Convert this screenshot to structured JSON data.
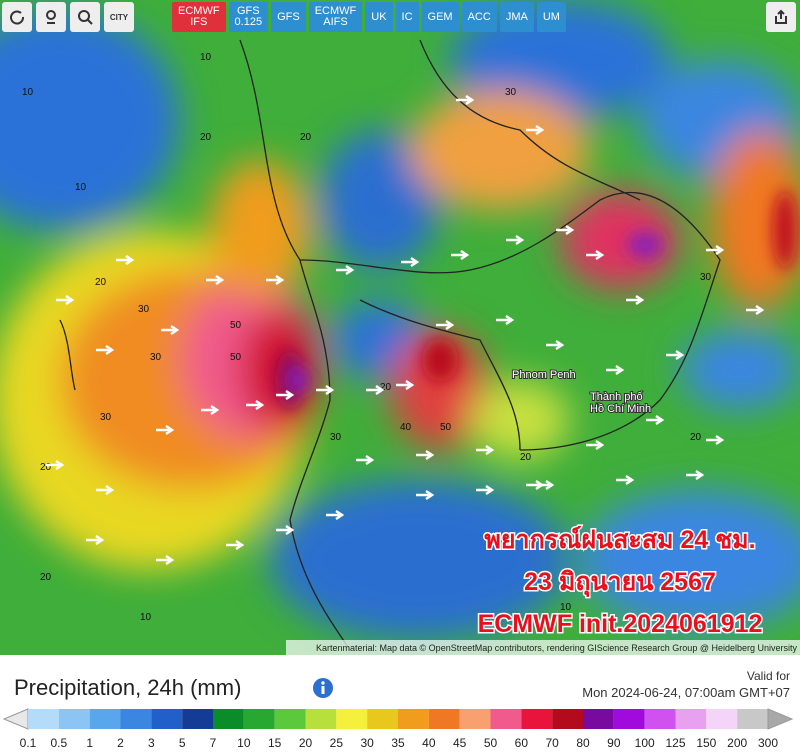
{
  "toolbar": {
    "tools": [
      "CITY"
    ],
    "models": [
      [
        "ECMWF",
        "IFS"
      ],
      [
        "GFS",
        "0.125"
      ],
      [
        "GFS"
      ],
      [
        "ECMWF",
        "AIFS"
      ],
      [
        "UK"
      ],
      [
        "IC"
      ],
      [
        "GEM"
      ],
      [
        "ACC"
      ],
      [
        "JMA"
      ],
      [
        "UM"
      ]
    ],
    "active_model": 0
  },
  "map": {
    "places": [
      "Phnom Penh",
      "Thành phố",
      "Hồ Chí Minh"
    ],
    "contour_labels": [
      10,
      10,
      20,
      20,
      30,
      30,
      50,
      50,
      30,
      20,
      10,
      20,
      30,
      40,
      50,
      20,
      30,
      20,
      10,
      10,
      20,
      30,
      10,
      20
    ],
    "overlay": [
      "พยากรณ์ฝนสะสม 24 ชม.",
      "23 มิถุนายน 2567",
      "ECMWF init.2024061912"
    ],
    "attribution": "Kartenmaterial: Map data © OpenStreetMap contributors, rendering GIScience Research Group @ Heidelberg University"
  },
  "legend": {
    "title": "Precipitation, 24h (mm)",
    "valid_label": "Valid for",
    "valid_time": "Mon 2024-06-24, 07:00am GMT+07",
    "labels": [
      0.1,
      0.5,
      1,
      2,
      3,
      5,
      7,
      10,
      15,
      20,
      25,
      30,
      35,
      40,
      45,
      50,
      60,
      70,
      80,
      90,
      100,
      125,
      150,
      200,
      300
    ],
    "colors": [
      "#b4dcf8",
      "#8cc4f4",
      "#5aa6ec",
      "#3a86e0",
      "#2060c8",
      "#143c96",
      "#0a8c28",
      "#28a830",
      "#5cc83c",
      "#b8e03c",
      "#f4f03c",
      "#e8c81c",
      "#f09c1c",
      "#f07824",
      "#f8a070",
      "#f05a8c",
      "#e8143c",
      "#b40a1e",
      "#780aa0",
      "#a00adc",
      "#d050f0",
      "#e8a0f0",
      "#f4d4f8",
      "#c8c8c8"
    ]
  }
}
